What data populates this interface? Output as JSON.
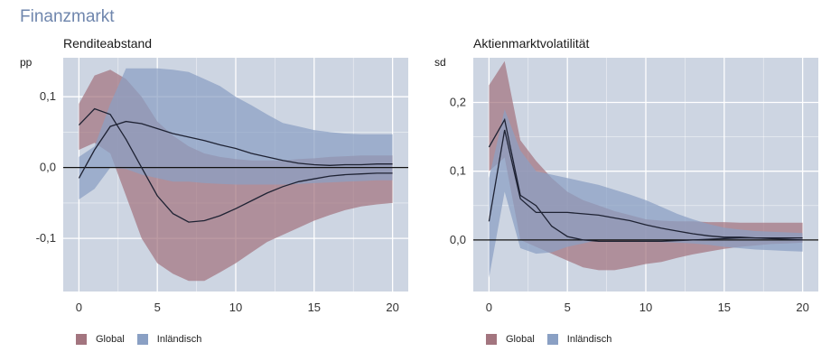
{
  "figure_title": "Finanzmarkt",
  "colors": {
    "global": "#a3757f",
    "domestic": "#8aa0c4",
    "panel_bg": "#cdd5e2"
  },
  "chart_data": [
    {
      "type": "area",
      "title": "Renditeabstand",
      "ylabel": "pp",
      "xlim": [
        -1,
        21
      ],
      "ylim": [
        -0.175,
        0.155
      ],
      "x_ticks": [
        0,
        5,
        10,
        15,
        20
      ],
      "x_tick_labels": [
        "0",
        "5",
        "10",
        "15",
        "20"
      ],
      "y_ticks": [
        -0.1,
        0.0,
        0.1
      ],
      "y_tick_labels": [
        "-0,1",
        "0,0",
        "0,1"
      ],
      "zero_line": true,
      "grid": true,
      "x": [
        0,
        1,
        2,
        3,
        4,
        5,
        6,
        7,
        8,
        9,
        10,
        11,
        12,
        13,
        14,
        15,
        16,
        17,
        18,
        19,
        20
      ],
      "series": [
        {
          "name": "Global",
          "median": [
            0.06,
            0.083,
            0.075,
            0.04,
            0.0,
            -0.04,
            -0.065,
            -0.077,
            -0.075,
            -0.068,
            -0.058,
            -0.047,
            -0.036,
            -0.027,
            -0.02,
            -0.016,
            -0.012,
            -0.01,
            -0.009,
            -0.008,
            -0.008
          ],
          "lower": [
            0.025,
            0.035,
            0.02,
            -0.04,
            -0.1,
            -0.135,
            -0.15,
            -0.16,
            -0.16,
            -0.148,
            -0.135,
            -0.12,
            -0.105,
            -0.095,
            -0.085,
            -0.075,
            -0.067,
            -0.06,
            -0.055,
            -0.052,
            -0.05
          ],
          "upper": [
            0.09,
            0.13,
            0.138,
            0.125,
            0.1,
            0.065,
            0.045,
            0.03,
            0.02,
            0.015,
            0.012,
            0.01,
            0.01,
            0.01,
            0.012,
            0.013,
            0.015,
            0.016,
            0.017,
            0.017,
            0.017
          ]
        },
        {
          "name": "Inländisch",
          "median": [
            -0.015,
            0.025,
            0.058,
            0.065,
            0.062,
            0.055,
            0.048,
            0.043,
            0.038,
            0.032,
            0.027,
            0.02,
            0.015,
            0.01,
            0.006,
            0.004,
            0.003,
            0.004,
            0.004,
            0.005,
            0.005
          ],
          "lower": [
            -0.045,
            -0.03,
            0.0,
            -0.002,
            -0.01,
            -0.015,
            -0.02,
            -0.02,
            -0.022,
            -0.023,
            -0.024,
            -0.024,
            -0.024,
            -0.024,
            -0.023,
            -0.022,
            -0.021,
            -0.02,
            -0.019,
            -0.018,
            -0.018
          ],
          "upper": [
            0.015,
            0.03,
            0.09,
            0.14,
            0.14,
            0.14,
            0.138,
            0.135,
            0.125,
            0.115,
            0.1,
            0.088,
            0.075,
            0.063,
            0.058,
            0.053,
            0.05,
            0.048,
            0.047,
            0.047,
            0.047
          ]
        }
      ]
    },
    {
      "type": "area",
      "title": "Aktienmarktvolatilität",
      "ylabel": "sd",
      "xlim": [
        -1,
        21
      ],
      "ylim": [
        -0.075,
        0.265
      ],
      "x_ticks": [
        0,
        5,
        10,
        15,
        20
      ],
      "x_tick_labels": [
        "0",
        "5",
        "10",
        "15",
        "20"
      ],
      "y_ticks": [
        0.0,
        0.1,
        0.2
      ],
      "y_tick_labels": [
        "0,0",
        "0,1",
        "0,2"
      ],
      "zero_line": true,
      "grid": true,
      "x": [
        0,
        1,
        2,
        3,
        4,
        5,
        6,
        7,
        8,
        9,
        10,
        11,
        12,
        13,
        14,
        15,
        16,
        17,
        18,
        19,
        20
      ],
      "series": [
        {
          "name": "Global",
          "median": [
            0.135,
            0.175,
            0.065,
            0.05,
            0.02,
            0.005,
            0.0,
            -0.002,
            -0.002,
            -0.002,
            -0.002,
            -0.002,
            -0.001,
            0.0,
            0.001,
            0.002,
            0.003,
            0.003,
            0.003,
            0.003,
            0.003
          ],
          "lower": [
            0.1,
            0.12,
            0.0,
            -0.01,
            -0.02,
            -0.03,
            -0.04,
            -0.044,
            -0.044,
            -0.04,
            -0.035,
            -0.032,
            -0.026,
            -0.021,
            -0.017,
            -0.013,
            -0.01,
            -0.008,
            -0.006,
            -0.005,
            -0.004
          ],
          "upper": [
            0.225,
            0.26,
            0.145,
            0.115,
            0.09,
            0.07,
            0.058,
            0.05,
            0.042,
            0.036,
            0.03,
            0.028,
            0.027,
            0.027,
            0.026,
            0.026,
            0.025,
            0.025,
            0.025,
            0.025,
            0.025
          ]
        },
        {
          "name": "Inländisch",
          "median": [
            0.027,
            0.16,
            0.06,
            0.04,
            0.04,
            0.04,
            0.038,
            0.036,
            0.032,
            0.028,
            0.022,
            0.017,
            0.013,
            0.009,
            0.006,
            0.004,
            0.004,
            0.003,
            0.002,
            0.001,
            0.0
          ],
          "lower": [
            -0.055,
            0.07,
            -0.012,
            -0.02,
            -0.018,
            -0.01,
            -0.005,
            0.0,
            0.0,
            0.0,
            -0.002,
            -0.003,
            -0.004,
            -0.005,
            -0.007,
            -0.01,
            -0.012,
            -0.014,
            -0.015,
            -0.016,
            -0.017
          ],
          "upper": [
            0.09,
            0.19,
            0.13,
            0.1,
            0.095,
            0.09,
            0.085,
            0.08,
            0.073,
            0.066,
            0.058,
            0.048,
            0.038,
            0.03,
            0.023,
            0.018,
            0.015,
            0.013,
            0.012,
            0.011,
            0.01
          ]
        }
      ]
    }
  ]
}
